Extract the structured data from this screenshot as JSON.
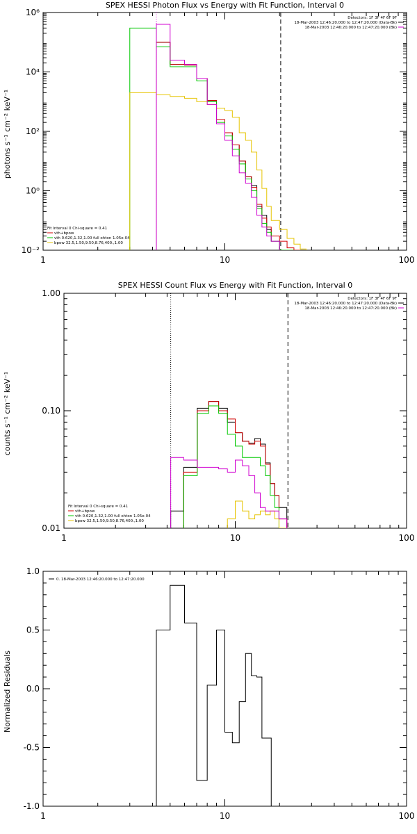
{
  "colors": {
    "data": "#000000",
    "fit_total": "#d00000",
    "vth": "#00c800",
    "bpow": "#e6c400",
    "background": "#d000d0"
  },
  "chart_data": [
    {
      "type": "line",
      "title": "SPEX HESSI Photon Flux vs Energy with Fit Function, Interval 0",
      "xlabel": "",
      "ylabel": "photons s⁻¹ cm⁻² keV⁻¹",
      "xlim": [
        1,
        100
      ],
      "ylim": [
        0.01,
        1000000.0
      ],
      "x_log": true,
      "y_log": true,
      "x_ticks": [
        1,
        10,
        100
      ],
      "x_tick_labels": [
        "1",
        "10",
        "100"
      ],
      "y_ticks": [
        0.01,
        1,
        100,
        10000,
        1000000
      ],
      "y_tick_labels": [
        "10⁻²",
        "10⁰",
        "10²",
        "10⁴",
        "10⁶"
      ],
      "legend_top": [
        "Detectors: 1F 3F 4F 6F 9F",
        "18-Mar-2003 12:46:20.000 to 12:47:20.000 (Data-Bk)",
        "18-Mar-2003 12:46:20.000 to 12:47:20.000 (Bk)"
      ],
      "legend_bottom": [
        "Fit Interval 0   Chi-square = 0.41",
        "vth+bpow",
        "vth 0.620,1.32,1.00  full ohton 1.05e-04",
        "bpow 32.5,1.50,9.50,8.76,400.,1.00"
      ],
      "vlines": [
        {
          "x": 4.2,
          "style": "dotted"
        },
        {
          "x": 20.3,
          "style": "dashed"
        }
      ],
      "edges": [
        3.0,
        4.2,
        5.0,
        6.0,
        7.0,
        8.0,
        9.0,
        10.0,
        11.0,
        12.0,
        13.0,
        14.0,
        15.0,
        16.0,
        17.0,
        18.0,
        20.0,
        22.0,
        24.0,
        26.0,
        28.0
      ],
      "series": [
        {
          "name": "Data-Bk",
          "color_key": "data",
          "x": [
            4.6,
            5.5,
            6.5,
            7.5,
            8.5,
            9.5,
            10.5,
            11.5,
            12.5,
            13.5,
            14.5,
            15.5,
            16.5,
            17.5,
            19.0
          ],
          "values": [
            100000,
            18000,
            17000,
            6000,
            1000,
            250,
            90,
            35,
            10,
            3,
            1.5,
            0.3,
            0.15,
            0.05,
            0.02
          ]
        },
        {
          "name": "vth+bpow",
          "color_key": "fit_total",
          "x": [
            4.6,
            5.5,
            6.5,
            7.5,
            8.5,
            9.5,
            10.5,
            11.5,
            12.5,
            13.5,
            14.5,
            15.5,
            16.5,
            17.5,
            19.0,
            21.0,
            23.0,
            25.0
          ],
          "values": [
            100000,
            18000,
            17000,
            6000,
            1100,
            250,
            90,
            35,
            10,
            3,
            1.3,
            0.35,
            0.12,
            0.06,
            0.03,
            0.02,
            0.012,
            0.01
          ]
        },
        {
          "name": "vth 0.620,1.32,1.00  full ohton 1.05e-04",
          "color_key": "vth",
          "x": [
            3.6,
            4.6,
            5.5,
            6.5,
            7.5,
            8.5,
            9.5,
            10.5,
            11.5,
            12.5,
            13.5,
            14.5,
            15.5,
            16.5,
            17.5,
            19.0,
            21.0,
            23.0
          ],
          "values": [
            300000,
            70000,
            15000,
            15000,
            5000,
            1000,
            200,
            70,
            25,
            8,
            2.5,
            1.0,
            0.25,
            0.08,
            0.04,
            0.02,
            0.01,
            0.01
          ]
        },
        {
          "name": "bpow 32.5,1.50,9.50,8.76,400.,1.00",
          "color_key": "bpow",
          "x": [
            3.6,
            4.6,
            5.5,
            6.5,
            7.5,
            8.5,
            9.5,
            10.5,
            11.5,
            12.5,
            13.5,
            14.5,
            15.5,
            16.5,
            17.5,
            19.0,
            21.0,
            23.0,
            25.0,
            27.0
          ],
          "values": [
            2000,
            1700,
            1500,
            1300,
            1000,
            800,
            600,
            500,
            300,
            90,
            50,
            20,
            5,
            1.2,
            0.3,
            0.1,
            0.05,
            0.025,
            0.016,
            0.011
          ]
        },
        {
          "name": "Bk",
          "color_key": "background",
          "x": [
            4.6,
            5.5,
            6.5,
            7.5,
            8.5,
            9.5,
            10.5,
            11.5,
            12.5,
            13.5,
            14.5,
            15.5,
            16.5,
            17.5,
            19.0
          ],
          "values": [
            400000,
            25000,
            18000,
            6000,
            800,
            180,
            50,
            15,
            4,
            1.8,
            0.6,
            0.15,
            0.06,
            0.03,
            0.02
          ]
        }
      ]
    },
    {
      "type": "line",
      "title": "SPEX HESSI Count Flux vs Energy with Fit Function, Interval 0",
      "xlabel": "",
      "ylabel": "counts s⁻¹ cm⁻² keV⁻¹",
      "xlim": [
        1,
        100
      ],
      "ylim": [
        0.01,
        1.0
      ],
      "x_log": true,
      "y_log": true,
      "x_ticks": [
        1,
        10,
        100
      ],
      "x_tick_labels": [
        "1",
        "10",
        "100"
      ],
      "y_ticks": [
        0.01,
        0.1,
        1.0
      ],
      "y_tick_labels": [
        "0.01",
        "0.10",
        "1.00"
      ],
      "legend_top": [
        "Detectors: 1F 3F 4F 6F 9F",
        "18-Mar-2003 12:46:20.000 to 12:47:20.000 (Data-Bk)",
        "18-Mar-2003 12:46:20.000 to 12:47:20.000 (Bk)"
      ],
      "legend_bottom": [
        "Fit Interval 0   Chi-square = 0.41",
        "vth+bpow",
        "vth 0.620,1.32,1.00  full ohton 1.05e-04",
        "bpow 32.5,1.50,9.50,8.76,400.,1.00"
      ],
      "vlines": [
        {
          "x": 4.2,
          "style": "dotted"
        },
        {
          "x": 20.3,
          "style": "dashed"
        }
      ],
      "edges": [
        4.2,
        5.0,
        6.0,
        7.0,
        8.0,
        9.0,
        10.0,
        11.0,
        12.0,
        13.0,
        14.0,
        15.0,
        16.0,
        17.0,
        18.0,
        20.0
      ],
      "series": [
        {
          "name": "Data-Bk",
          "color_key": "data",
          "x": [
            4.6,
            5.5,
            6.5,
            7.5,
            8.5,
            9.5,
            10.5,
            11.5,
            12.5,
            13.5,
            14.5,
            15.5,
            16.5,
            17.5,
            19.0
          ],
          "values": [
            0.014,
            0.033,
            0.105,
            0.12,
            0.105,
            0.08,
            0.065,
            0.055,
            0.053,
            0.058,
            0.052,
            0.036,
            0.024,
            0.019,
            0.015
          ]
        },
        {
          "name": "vth+bpow",
          "color_key": "fit_total",
          "x": [
            5.5,
            6.5,
            7.5,
            8.5,
            9.5,
            10.5,
            11.5,
            12.5,
            13.5,
            14.5,
            15.5,
            16.5,
            17.5,
            19.0
          ],
          "values": [
            0.03,
            0.1,
            0.12,
            0.1,
            0.085,
            0.065,
            0.055,
            0.052,
            0.055,
            0.05,
            0.035,
            0.024,
            0.019,
            0.012
          ]
        },
        {
          "name": "vth 0.620,1.32,1.00  full ohton 1.05e-04",
          "color_key": "vth",
          "x": [
            5.5,
            6.5,
            7.5,
            8.5,
            9.5,
            10.5,
            11.5,
            12.5,
            13.5,
            14.5,
            15.5,
            16.5,
            17.5,
            19.0
          ],
          "values": [
            0.028,
            0.095,
            0.11,
            0.095,
            0.063,
            0.05,
            0.04,
            0.04,
            0.04,
            0.034,
            0.028,
            0.019,
            0.015,
            0.01
          ]
        },
        {
          "name": "bpow 32.5,1.50,9.50,8.76,400.,1.00",
          "color_key": "bpow",
          "x": [
            9.5,
            10.5,
            11.5,
            12.5,
            13.5,
            14.5,
            15.5,
            16.5,
            17.5,
            19.0
          ],
          "values": [
            0.012,
            0.017,
            0.014,
            0.012,
            0.013,
            0.014,
            0.013,
            0.014,
            0.012,
            0.01
          ]
        },
        {
          "name": "Bk",
          "color_key": "background",
          "x": [
            4.6,
            5.5,
            6.5,
            7.5,
            8.5,
            9.5,
            10.5,
            11.5,
            12.5,
            13.5,
            14.5,
            15.5,
            16.5,
            17.5,
            19.0
          ],
          "values": [
            0.04,
            0.038,
            0.033,
            0.033,
            0.032,
            0.03,
            0.038,
            0.034,
            0.028,
            0.02,
            0.015,
            0.014,
            0.014,
            0.014,
            0.012
          ]
        }
      ]
    },
    {
      "type": "line",
      "title": "",
      "xlabel": "",
      "ylabel": "Normalized Residuals",
      "xlim": [
        1,
        100
      ],
      "ylim": [
        -1.0,
        1.0
      ],
      "x_log": true,
      "y_log": false,
      "x_ticks": [
        1,
        10,
        100
      ],
      "x_tick_labels": [
        "1",
        "10",
        "100"
      ],
      "y_ticks": [
        -1.0,
        -0.5,
        0.0,
        0.5,
        1.0
      ],
      "y_tick_labels": [
        "-1.0",
        "-0.5",
        "0.0",
        "0.5",
        "1.0"
      ],
      "legend_top": [],
      "legend_bottom": [],
      "legend_left": "0. 18-Mar-2003 12:46:20.000 to 12:47:20.000",
      "vlines": [],
      "edges": [
        4.2,
        5.0,
        6.0,
        7.0,
        8.0,
        9.0,
        10.0,
        11.0,
        12.0,
        13.0,
        14.0,
        15.0,
        16.0,
        17.0,
        18.0,
        20.0
      ],
      "series": [
        {
          "name": "0. 18-Mar-2003 12:46:20.000 to 12:47:20.000",
          "color_key": "data",
          "x": [
            4.6,
            5.5,
            6.5,
            7.5,
            8.5,
            9.5,
            10.5,
            11.5,
            12.5,
            13.5,
            14.5,
            15.5,
            16.5,
            17.5,
            19.0
          ],
          "values": [
            0.5,
            0.88,
            0.56,
            -0.78,
            0.03,
            0.5,
            -0.37,
            -0.46,
            -0.11,
            0.3,
            0.11,
            0.1,
            -0.42,
            -0.42,
            -1.0
          ]
        }
      ]
    }
  ]
}
